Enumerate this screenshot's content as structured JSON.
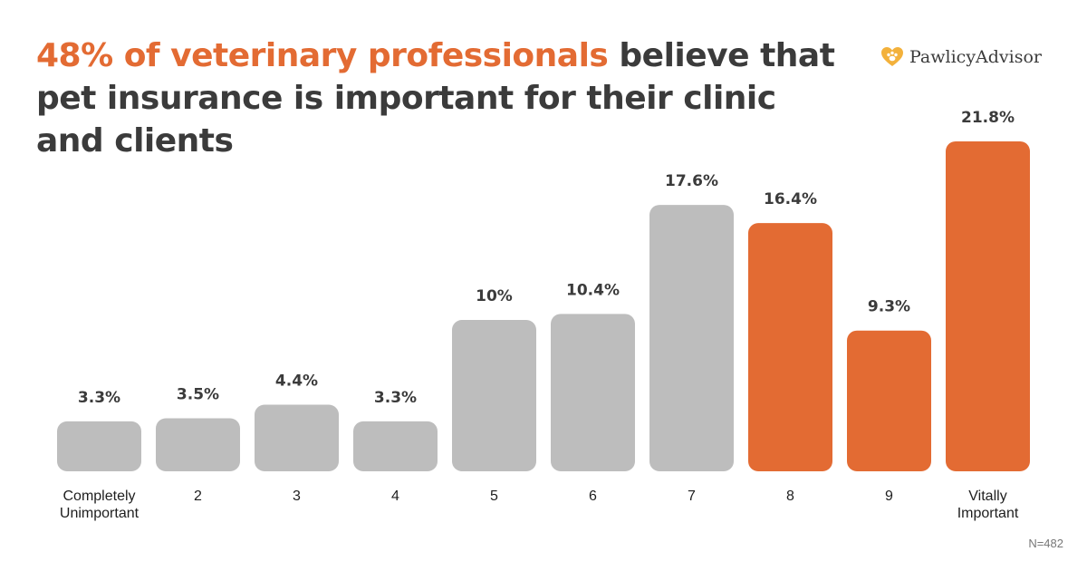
{
  "header": {
    "title_highlight": "48% of veterinary professionals",
    "title_rest": " believe that pet insurance is important for their clinic and clients"
  },
  "logo": {
    "text": "PawlicyAdvisor",
    "icon": "heart-paw-icon"
  },
  "footnote": "N=482",
  "colors": {
    "highlight": "#e36b33",
    "neutral_bar": "#bdbdbd",
    "text": "#3b3b3b"
  },
  "chart_data": {
    "type": "bar",
    "title": "48% of veterinary professionals believe that pet insurance is important for their clinic and clients",
    "xlabel": "",
    "ylabel": "",
    "categories": [
      [
        "Completely",
        "Unimportant"
      ],
      [
        "2"
      ],
      [
        "3"
      ],
      [
        "4"
      ],
      [
        "5"
      ],
      [
        "6"
      ],
      [
        "7"
      ],
      [
        "8"
      ],
      [
        "9"
      ],
      [
        "Vitally",
        "Important"
      ]
    ],
    "values": [
      3.3,
      3.5,
      4.4,
      3.3,
      10,
      10.4,
      17.6,
      16.4,
      9.3,
      21.8
    ],
    "value_labels": [
      "3.3%",
      "3.5%",
      "4.4%",
      "3.3%",
      "10%",
      "10.4%",
      "17.6%",
      "16.4%",
      "9.3%",
      "21.8%"
    ],
    "highlighted": [
      false,
      false,
      false,
      false,
      false,
      false,
      false,
      true,
      true,
      true
    ],
    "grid": false,
    "legend": "none"
  }
}
